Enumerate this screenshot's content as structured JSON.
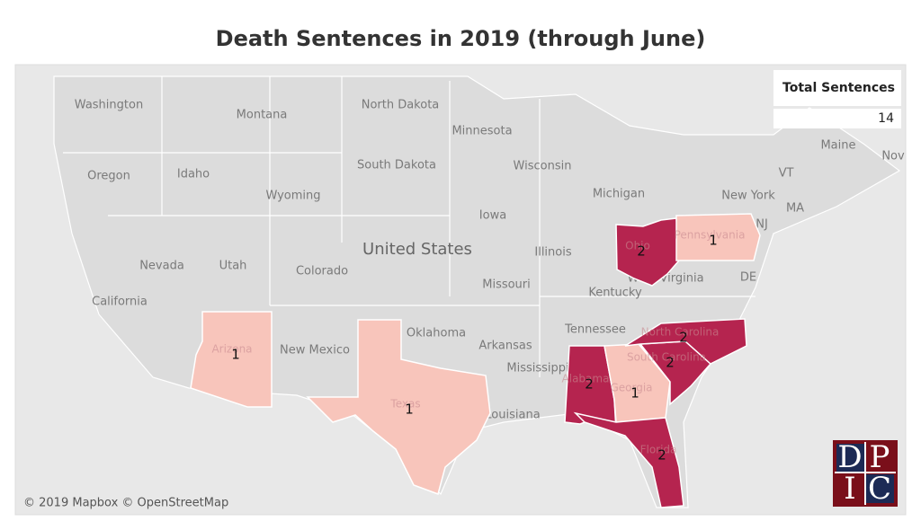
{
  "title": "Death Sentences in 2019 (through June)",
  "legend": {
    "title": "Total Sentences",
    "value": 14
  },
  "states": [
    {
      "name": "Ohio",
      "value": 2,
      "color": "#b5244f"
    },
    {
      "name": "Pennsylvania",
      "value": 1,
      "color": "#f8c5bb"
    },
    {
      "name": "Arizona",
      "value": 1,
      "color": "#f8c5bb"
    },
    {
      "name": "Texas",
      "value": 1,
      "color": "#f8c5bb"
    },
    {
      "name": "Alabama",
      "value": 2,
      "color": "#b5244f"
    },
    {
      "name": "Georgia",
      "value": 1,
      "color": "#f8c5bb"
    },
    {
      "name": "South Carolina",
      "value": 2,
      "color": "#b5244f"
    },
    {
      "name": "North Carolina",
      "value": 2,
      "color": "#b5244f"
    },
    {
      "name": "Florida",
      "value": 2,
      "color": "#b5244f"
    }
  ],
  "map_labels": [
    "Washington",
    "Montana",
    "North Dakota",
    "Minnesota",
    "Oregon",
    "Idaho",
    "South Dakota",
    "Wisconsin",
    "Michigan",
    "Wyoming",
    "Iowa",
    "New York",
    "Nevada",
    "Utah",
    "Colorado",
    "Illinois",
    "United States",
    "California",
    "Missouri",
    "Kentucky",
    "West Virginia",
    "Tennessee",
    "Oklahoma",
    "New Mexico",
    "Arkansas",
    "Mississippi",
    "Louisiana",
    "Maine",
    "VT",
    "MA",
    "NJ",
    "DE",
    "Nov"
  ],
  "attribution": "© 2019 Mapbox © OpenStreetMap",
  "logo": [
    "D",
    "P",
    "I",
    "C"
  ]
}
